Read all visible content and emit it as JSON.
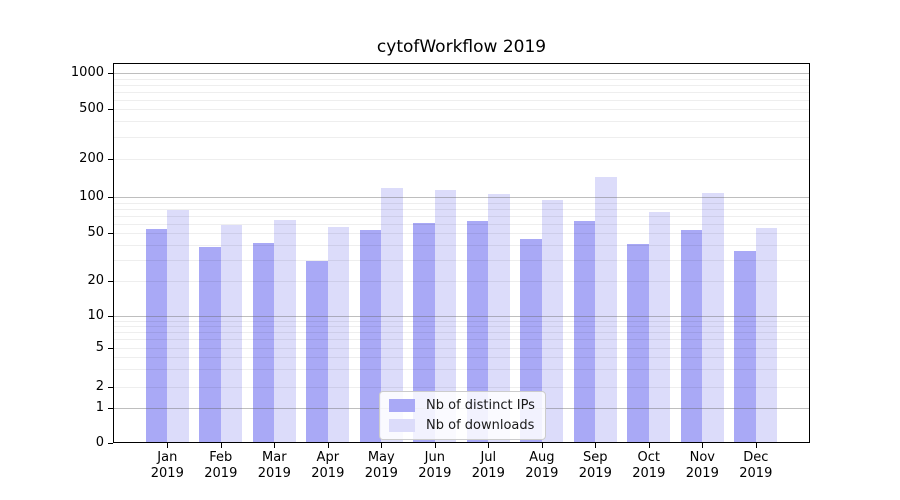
{
  "title": "cytofWorkflow 2019",
  "chart_data": {
    "type": "bar",
    "title": "cytofWorkflow 2019",
    "categories": [
      "Jan 2019",
      "Feb 2019",
      "Mar 2019",
      "Apr 2019",
      "May 2019",
      "Jun 2019",
      "Jul 2019",
      "Aug 2019",
      "Sep 2019",
      "Oct 2019",
      "Nov 2019",
      "Dec 2019"
    ],
    "x_tick_months": [
      "Jan",
      "Feb",
      "Mar",
      "Apr",
      "May",
      "Jun",
      "Jul",
      "Aug",
      "Sep",
      "Oct",
      "Nov",
      "Dec"
    ],
    "x_tick_year": "2019",
    "series": [
      {
        "name": "Nb of distinct IPs",
        "color": "#a9a9f6",
        "values": [
          53,
          38,
          41,
          29,
          52,
          60,
          62,
          44,
          62,
          40,
          52,
          35
        ]
      },
      {
        "name": "Nb of downloads",
        "color": "#dcdcfa",
        "values": [
          76,
          58,
          63,
          55,
          115,
          112,
          104,
          93,
          142,
          74,
          105,
          54
        ]
      }
    ],
    "yticks": [
      0,
      1,
      2,
      5,
      10,
      20,
      50,
      100,
      200,
      500,
      1000
    ],
    "yscale": "symlog",
    "ylim": [
      0,
      1250
    ],
    "xlabel": "",
    "ylabel": "",
    "grid": true,
    "grid_minor": true,
    "legend_position": "lower-center",
    "background_color": "#ffffff",
    "major_grid_values": [
      1,
      10,
      100,
      1000
    ]
  }
}
